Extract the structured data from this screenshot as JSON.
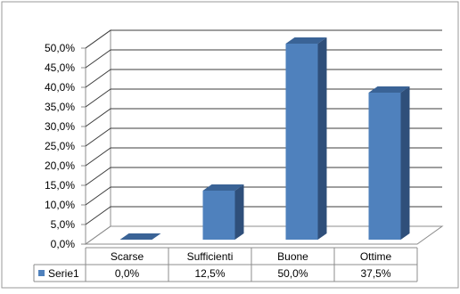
{
  "chart_data": {
    "type": "bar",
    "style": "3d-column",
    "categories": [
      "Scarse",
      "Sufficienti",
      "Buone",
      "Ottime"
    ],
    "series": [
      {
        "name": "Serie1",
        "values": [
          0.0,
          12.5,
          50.0,
          37.5
        ],
        "value_labels": [
          "0,0%",
          "12,5%",
          "50,0%",
          "37,5%"
        ],
        "color": "#4F81BD"
      }
    ],
    "ylim": [
      0,
      50
    ],
    "y_ticks": [
      "0,0%",
      "5,0%",
      "10,0%",
      "15,0%",
      "20,0%",
      "25,0%",
      "30,0%",
      "35,0%",
      "40,0%",
      "45,0%",
      "50,0%"
    ],
    "grid": true,
    "legend": "data-table-left"
  }
}
